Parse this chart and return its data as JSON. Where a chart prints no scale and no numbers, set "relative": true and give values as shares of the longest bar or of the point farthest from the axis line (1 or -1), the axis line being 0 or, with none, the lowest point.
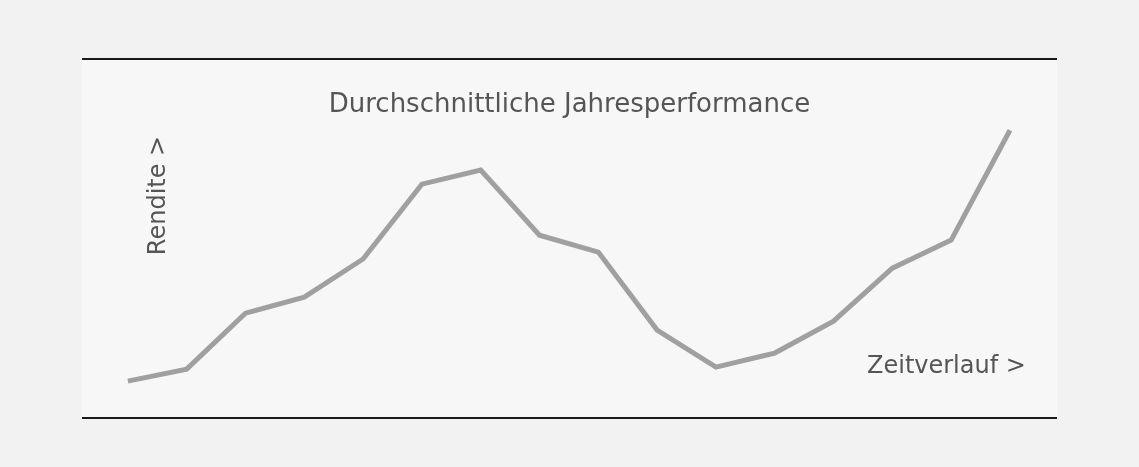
{
  "chart_data": {
    "type": "line",
    "title": "Durchschnittliche Jahresperformance",
    "xlabel": "Zeitverlauf >",
    "ylabel": "Rendite >",
    "relative": true,
    "line_style": "solid",
    "categories": [
      null,
      null,
      null,
      null,
      null,
      null,
      null,
      null,
      null,
      null,
      null,
      null,
      null,
      null,
      null,
      null
    ],
    "series": [
      {
        "color": "#a0a0a0",
        "values": [
          0.125,
          0.167,
          0.362,
          0.418,
          0.551,
          0.812,
          0.861,
          0.634,
          0.575,
          0.303,
          0.174,
          0.223,
          0.334,
          0.519,
          0.617,
          1
        ]
      }
    ]
  }
}
